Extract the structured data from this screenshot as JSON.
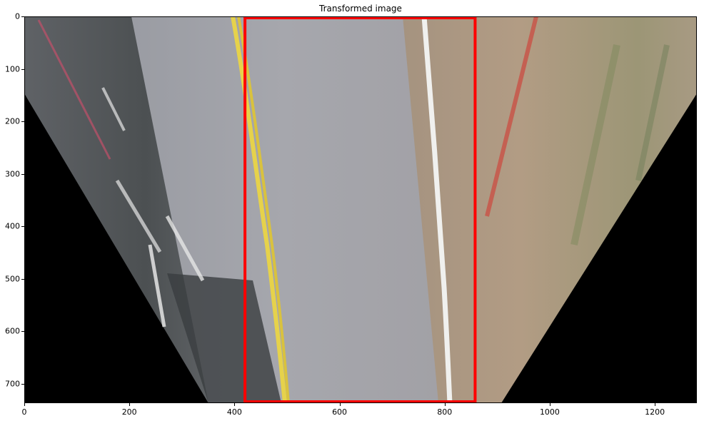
{
  "figure": {
    "title": "Transformed image",
    "x_ticks": [
      "0",
      "200",
      "400",
      "600",
      "800",
      "1000",
      "1200"
    ],
    "y_ticks": [
      "0",
      "100",
      "200",
      "300",
      "400",
      "500",
      "600",
      "700"
    ],
    "x_range": [
      0,
      1280
    ],
    "y_range": [
      0,
      737
    ],
    "roi_box": {
      "x": [
        420,
        858
      ],
      "y": [
        0,
        737
      ],
      "color": "#ff0000"
    }
  }
}
